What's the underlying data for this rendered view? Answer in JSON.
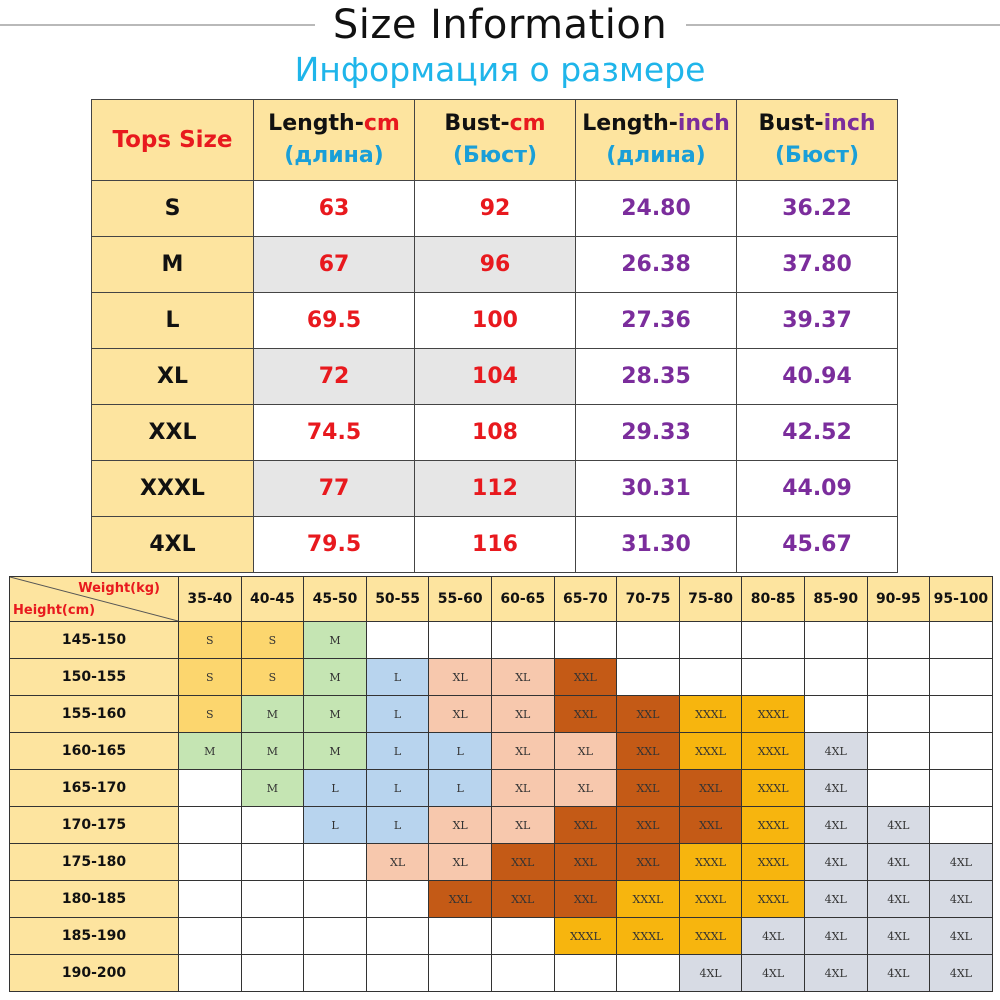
{
  "header": {
    "title": "Size Information",
    "subtitle": "Информация о размере"
  },
  "size_table": {
    "headers": [
      {
        "main": "Tops Size",
        "unit": "",
        "sub": ""
      },
      {
        "main": "Length-",
        "unit": "cm",
        "sub": "(длина)"
      },
      {
        "main": "Bust-",
        "unit": "cm",
        "sub": "(Бюст)"
      },
      {
        "main": "Length-",
        "unit": "inch",
        "sub": "(длина)"
      },
      {
        "main": "Bust-",
        "unit": "inch",
        "sub": "(Бюст)"
      }
    ],
    "rows": [
      {
        "size": "S",
        "length_cm": "63",
        "bust_cm": "92",
        "length_inch": "24.80",
        "bust_inch": "36.22"
      },
      {
        "size": "M",
        "length_cm": "67",
        "bust_cm": "96",
        "length_inch": "26.38",
        "bust_inch": "37.80"
      },
      {
        "size": "L",
        "length_cm": "69.5",
        "bust_cm": "100",
        "length_inch": "27.36",
        "bust_inch": "39.37"
      },
      {
        "size": "XL",
        "length_cm": "72",
        "bust_cm": "104",
        "length_inch": "28.35",
        "bust_inch": "40.94"
      },
      {
        "size": "XXL",
        "length_cm": "74.5",
        "bust_cm": "108",
        "length_inch": "29.33",
        "bust_inch": "42.52"
      },
      {
        "size": "XXXL",
        "length_cm": "77",
        "bust_cm": "112",
        "length_inch": "30.31",
        "bust_inch": "44.09"
      },
      {
        "size": "4XL",
        "length_cm": "79.5",
        "bust_cm": "116",
        "length_inch": "31.30",
        "bust_inch": "45.67"
      }
    ]
  },
  "weight_height_grid": {
    "weight_label": "Weight(kg)",
    "height_label": "Height(cm)",
    "weights": [
      "35-40",
      "40-45",
      "45-50",
      "50-55",
      "55-60",
      "60-65",
      "65-70",
      "70-75",
      "75-80",
      "80-85",
      "85-90",
      "90-95",
      "95-100"
    ],
    "rows": [
      {
        "height": "145-150",
        "cells": [
          "S",
          "S",
          "M",
          "",
          "",
          "",
          "",
          "",
          "",
          "",
          "",
          "",
          ""
        ]
      },
      {
        "height": "150-155",
        "cells": [
          "S",
          "S",
          "M",
          "L",
          "XL",
          "XL",
          "XXL",
          "",
          "",
          "",
          "",
          "",
          ""
        ]
      },
      {
        "height": "155-160",
        "cells": [
          "S",
          "M",
          "M",
          "L",
          "XL",
          "XL",
          "XXL",
          "XXL",
          "XXXL",
          "XXXL",
          "",
          "",
          ""
        ]
      },
      {
        "height": "160-165",
        "cells": [
          "M",
          "M",
          "M",
          "L",
          "L",
          "XL",
          "XL",
          "XXL",
          "XXXL",
          "XXXL",
          "4XL",
          "",
          ""
        ]
      },
      {
        "height": "165-170",
        "cells": [
          "",
          "M",
          "L",
          "L",
          "L",
          "XL",
          "XL",
          "XXL",
          "XXL",
          "XXXL",
          "4XL",
          "",
          ""
        ]
      },
      {
        "height": "170-175",
        "cells": [
          "",
          "",
          "L",
          "L",
          "XL",
          "XL",
          "XXL",
          "XXL",
          "XXL",
          "XXXL",
          "4XL",
          "4XL",
          ""
        ]
      },
      {
        "height": "175-180",
        "cells": [
          "",
          "",
          "",
          "XL",
          "XL",
          "XXL",
          "XXL",
          "XXL",
          "XXXL",
          "XXXL",
          "4XL",
          "4XL",
          "4XL"
        ]
      },
      {
        "height": "180-185",
        "cells": [
          "",
          "",
          "",
          "",
          "XXL",
          "XXL",
          "XXL",
          "XXXL",
          "XXXL",
          "XXXL",
          "4XL",
          "4XL",
          "4XL"
        ]
      },
      {
        "height": "185-190",
        "cells": [
          "",
          "",
          "",
          "",
          "",
          "",
          "XXXL",
          "XXXL",
          "XXXL",
          "4XL",
          "4XL",
          "4XL",
          "4XL"
        ]
      },
      {
        "height": "190-200",
        "cells": [
          "",
          "",
          "",
          "",
          "",
          "",
          "",
          "",
          "4XL",
          "4XL",
          "4XL",
          "4XL",
          "4XL"
        ]
      }
    ]
  },
  "colors": {
    "header_fill": "#fde49f",
    "cm_text": "#e8191e",
    "inch_text": "#7b2d9c",
    "subtitle_text": "#1fb5ea",
    "S": "#fcd66e",
    "M": "#c5e5b3",
    "L": "#b8d4ee",
    "XL": "#f7c8ad",
    "XXL": "#c45a16",
    "XXXL": "#f7b50e",
    "4XL": "#d7dbe4"
  }
}
